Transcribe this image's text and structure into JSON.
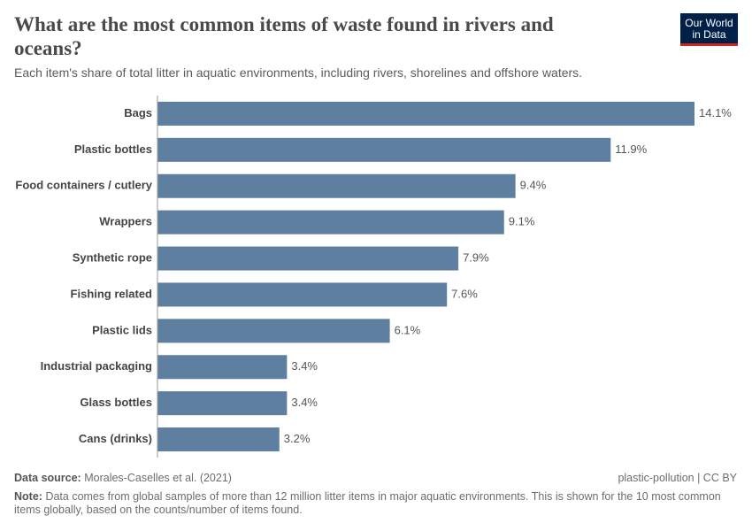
{
  "chart_data": {
    "type": "bar",
    "orientation": "horizontal",
    "title": "What are the most common items of waste found in rivers and oceans?",
    "subtitle": "Each item's share of total litter in aquatic environments, including rivers, shorelines and offshore waters.",
    "categories": [
      "Bags",
      "Plastic bottles",
      "Food containers / cutlery",
      "Wrappers",
      "Synthetic rope",
      "Fishing related",
      "Plastic lids",
      "Industrial packaging",
      "Glass bottles",
      "Cans (drinks)"
    ],
    "values": [
      14.1,
      11.9,
      9.4,
      9.1,
      7.9,
      7.6,
      6.1,
      3.4,
      3.4,
      3.2
    ],
    "value_labels": [
      "14.1%",
      "11.9%",
      "9.4%",
      "9.1%",
      "7.9%",
      "7.6%",
      "6.1%",
      "3.4%",
      "3.4%",
      "3.2%"
    ],
    "color": "#5e7fa0",
    "source_label": "Data source:",
    "source": "Morales-Caselles et al. (2021)",
    "footer_right": "plastic-pollution | CC BY",
    "note_label": "Note:",
    "note": "Data comes from global samples of more than 12 million litter items in major aquatic environments. This is shown for the 10 most common items globally, based on the counts/number of items found.",
    "logo": [
      "Our World",
      "in Data"
    ]
  }
}
